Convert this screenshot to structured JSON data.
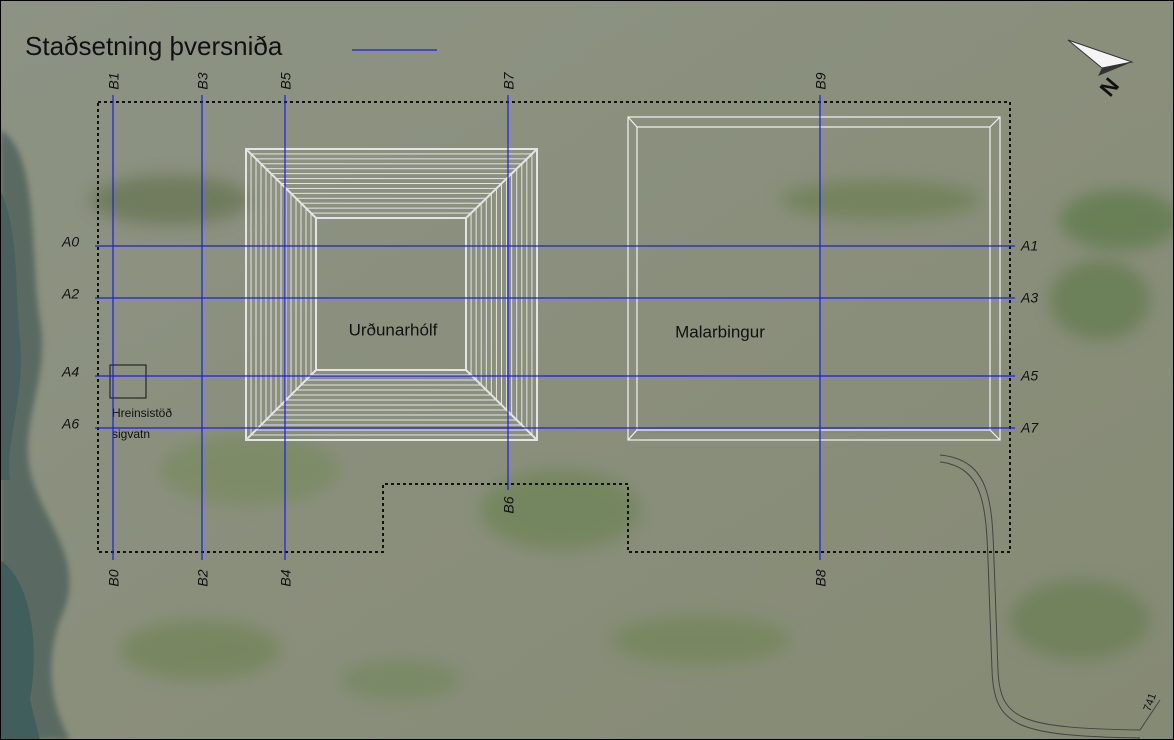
{
  "title": "Staðsetning þversniða",
  "lines": {
    "horizontal": [
      {
        "left": "A0",
        "right": "A1"
      },
      {
        "left": "A2",
        "right": "A3"
      },
      {
        "left": "A4",
        "right": "A5"
      },
      {
        "left": "A6",
        "right": "A7"
      }
    ],
    "vertical": [
      {
        "top": "B1",
        "bottom": "B0"
      },
      {
        "top": "B3",
        "bottom": "B2"
      },
      {
        "top": "B5",
        "bottom": "B4"
      },
      {
        "top": "B7",
        "bottom": "B6"
      },
      {
        "top": "B9",
        "bottom": "B8"
      }
    ]
  },
  "areas": {
    "landfill": "Urðunarhólf",
    "gravel_pile": "Malarbingur"
  },
  "facility": {
    "line1": "Hreinsistöð",
    "line2": "sigvatn"
  },
  "north": "N",
  "road": "741"
}
